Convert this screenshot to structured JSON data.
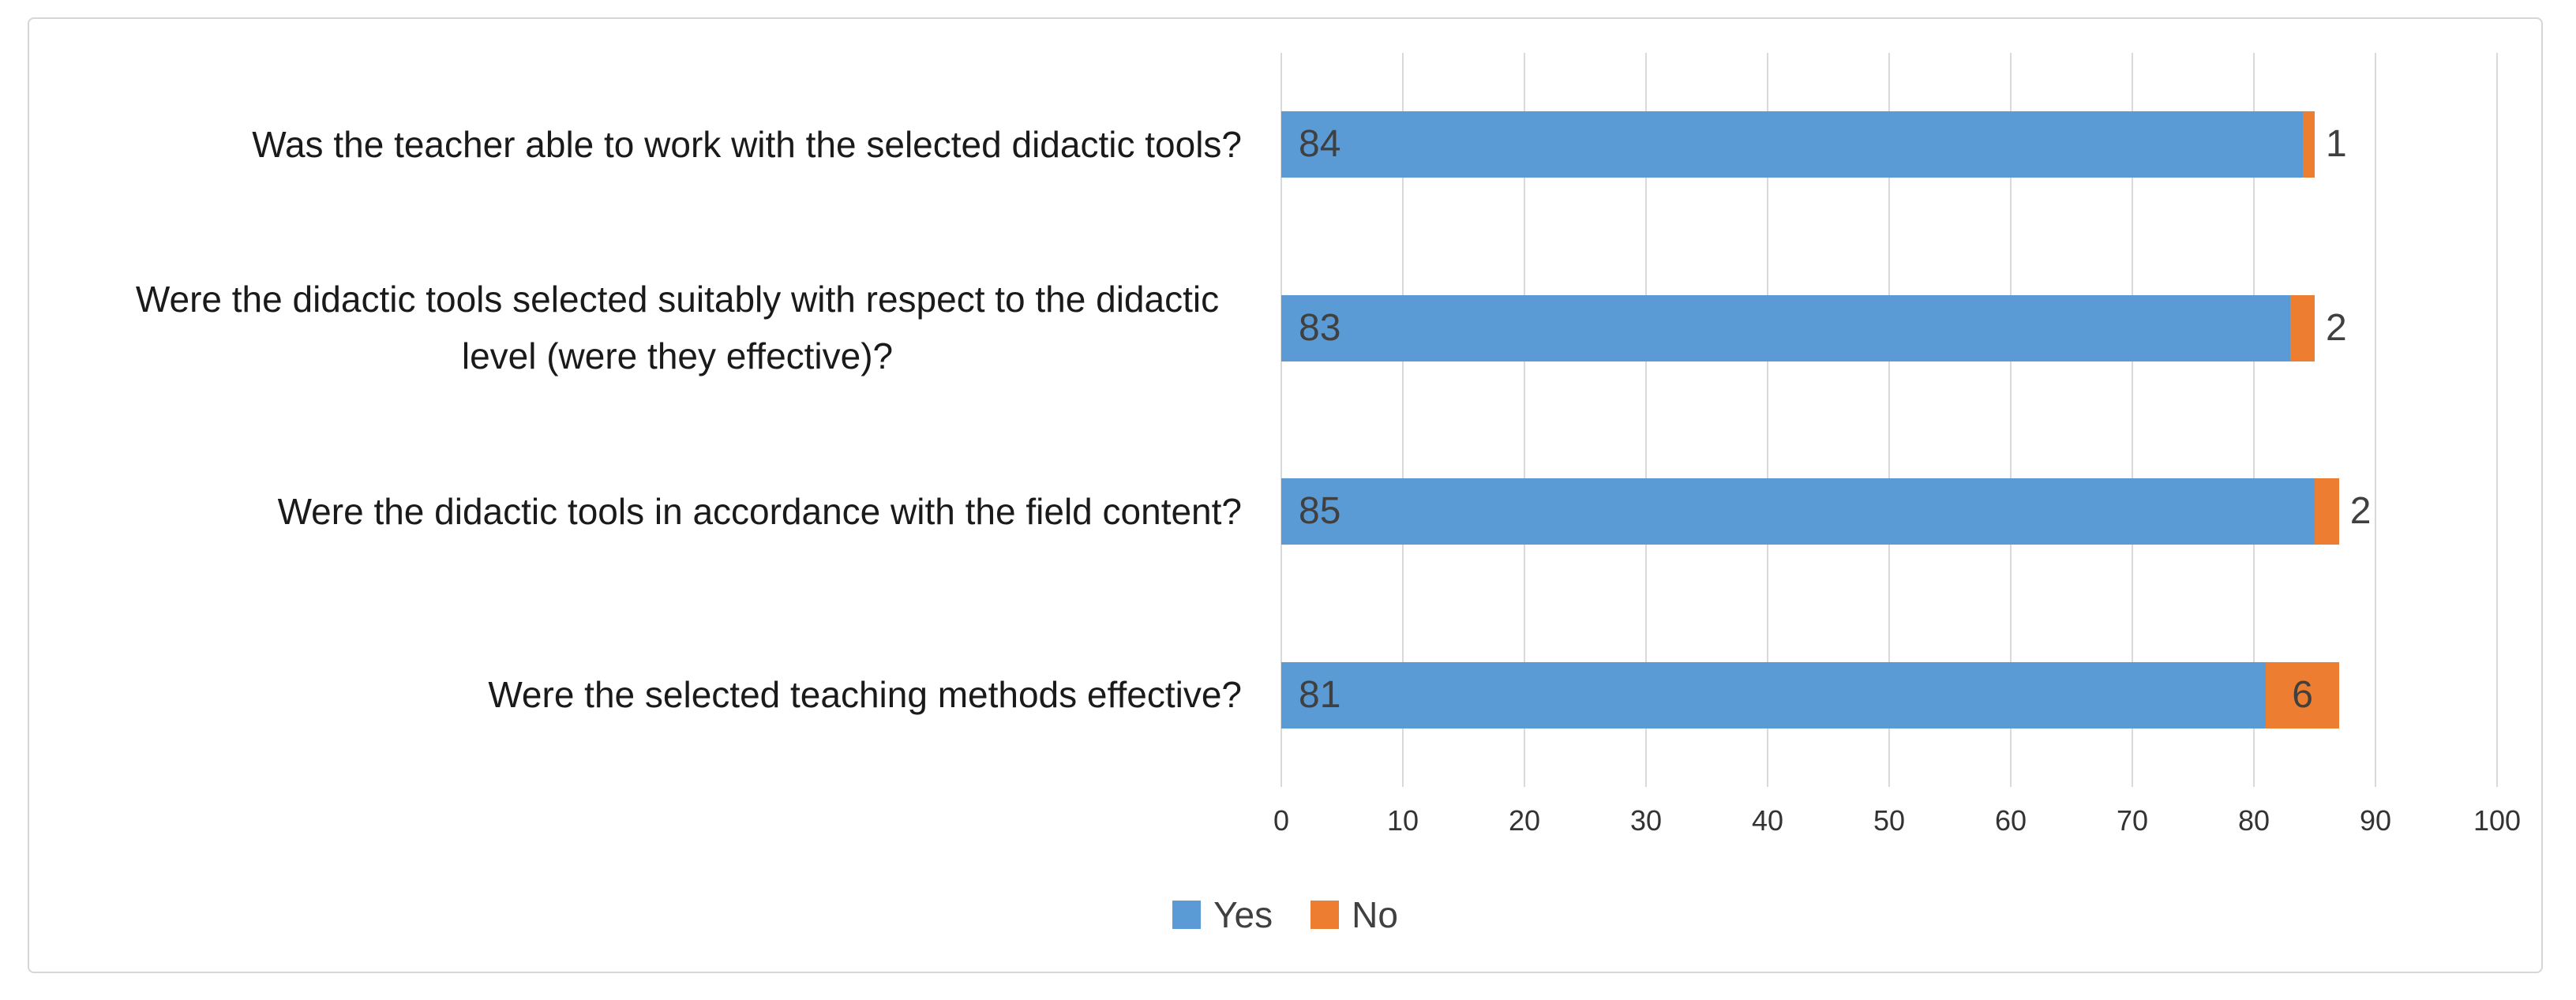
{
  "chart_data": {
    "type": "bar",
    "orientation": "horizontal",
    "stacked": true,
    "title": "",
    "categories": [
      "Was the teacher able to work with the selected didactic tools?",
      "Were the didactic tools selected suitably with respect to the didactic level (were they effective)?",
      "Were the didactic tools in accordance with the field content?",
      "Were the selected teaching methods effective?"
    ],
    "series": [
      {
        "name": "Yes",
        "color": "#5B9BD5",
        "values": [
          84,
          83,
          85,
          81
        ]
      },
      {
        "name": "No",
        "color": "#ED7D31",
        "values": [
          1,
          2,
          2,
          6
        ]
      }
    ],
    "x_axis": {
      "min": 0,
      "max": 100,
      "step": 10,
      "tick_labels": [
        "0",
        "10",
        "20",
        "30",
        "40",
        "50",
        "60",
        "70",
        "80",
        "90",
        "100"
      ]
    },
    "legend": {
      "position": "bottom",
      "entries": [
        "Yes",
        "No"
      ]
    },
    "grid": true,
    "data_labels_shown": true
  },
  "colors": {
    "gridline": "#d9d9d9",
    "category_text": "#1a1a1a",
    "tick_text": "#333333",
    "data_label_text": "#404040",
    "legend_text": "#404040",
    "frame_border": "#d6d6d6"
  }
}
